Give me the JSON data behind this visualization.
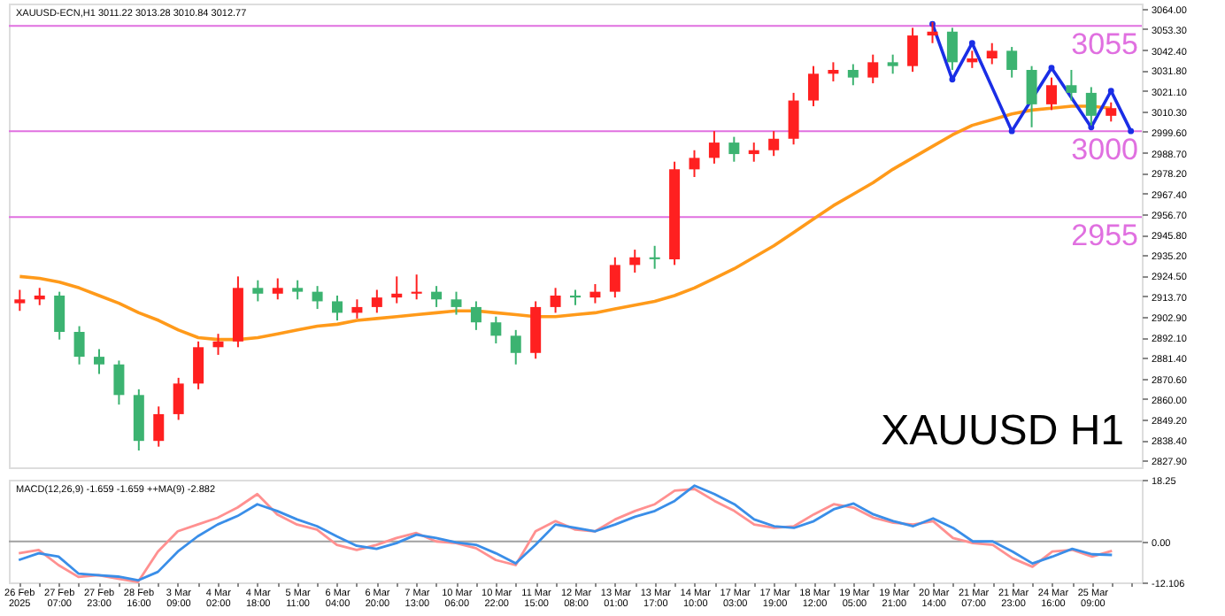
{
  "chart_data": [
    {
      "type": "candlestick",
      "title": "XAUUSD-ECN,H1  3011.22 3013.28 3010.84 3012.77",
      "ohlc": [
        [
          2910,
          2917,
          2906,
          2912
        ],
        [
          2912,
          2918,
          2909,
          2914
        ],
        [
          2914,
          2916,
          2891,
          2895
        ],
        [
          2895,
          2898,
          2878,
          2882
        ],
        [
          2882,
          2886,
          2873,
          2878
        ],
        [
          2878,
          2880,
          2857,
          2862
        ],
        [
          2862,
          2865,
          2833,
          2838
        ],
        [
          2838,
          2856,
          2835,
          2852
        ],
        [
          2852,
          2871,
          2849,
          2868
        ],
        [
          2868,
          2890,
          2865,
          2887
        ],
        [
          2887,
          2894,
          2883,
          2890
        ],
        [
          2890,
          2924,
          2887,
          2918
        ],
        [
          2918,
          2922,
          2911,
          2915
        ],
        [
          2915,
          2923,
          2912,
          2918
        ],
        [
          2918,
          2922,
          2912,
          2916
        ],
        [
          2916,
          2919,
          2907,
          2911
        ],
        [
          2911,
          2914,
          2901,
          2905
        ],
        [
          2905,
          2912,
          2902,
          2908
        ],
        [
          2908,
          2917,
          2905,
          2913
        ],
        [
          2913,
          2924,
          2910,
          2915
        ],
        [
          2915,
          2925,
          2912,
          2916
        ],
        [
          2916,
          2919,
          2908,
          2912
        ],
        [
          2912,
          2916,
          2904,
          2908
        ],
        [
          2908,
          2911,
          2896,
          2900
        ],
        [
          2900,
          2903,
          2889,
          2893
        ],
        [
          2893,
          2896,
          2878,
          2884
        ],
        [
          2884,
          2911,
          2881,
          2908
        ],
        [
          2908,
          2918,
          2905,
          2914
        ],
        [
          2914,
          2917,
          2909,
          2913
        ],
        [
          2913,
          2920,
          2910,
          2916
        ],
        [
          2916,
          2934,
          2913,
          2930
        ],
        [
          2930,
          2938,
          2926,
          2934
        ],
        [
          2934,
          2940,
          2928,
          2933
        ],
        [
          2933,
          2984,
          2930,
          2980
        ],
        [
          2980,
          2990,
          2976,
          2986
        ],
        [
          2986,
          3000,
          2983,
          2994
        ],
        [
          2994,
          2997,
          2984,
          2988
        ],
        [
          2988,
          2994,
          2984,
          2990
        ],
        [
          2990,
          3000,
          2987,
          2996
        ],
        [
          2996,
          3020,
          2993,
          3016
        ],
        [
          3016,
          3034,
          3013,
          3030
        ],
        [
          3030,
          3036,
          3026,
          3032
        ],
        [
          3032,
          3035,
          3024,
          3028
        ],
        [
          3028,
          3040,
          3025,
          3036
        ],
        [
          3036,
          3040,
          3030,
          3034
        ],
        [
          3034,
          3054,
          3031,
          3050
        ],
        [
          3050,
          3057,
          3046,
          3052
        ],
        [
          3052,
          3054,
          3032,
          3036
        ],
        [
          3036,
          3042,
          3033,
          3038
        ],
        [
          3038,
          3046,
          3035,
          3042
        ],
        [
          3042,
          3044,
          3028,
          3032
        ],
        [
          3032,
          3034,
          3002,
          3014
        ],
        [
          3014,
          3028,
          3011,
          3024
        ],
        [
          3024,
          3032,
          3016,
          3020
        ],
        [
          3020,
          3023,
          3003,
          3008
        ],
        [
          3008,
          3015,
          3005,
          3012
        ],
        null
      ],
      "colors": [
        "#ff2020",
        "#ff2020",
        "#3cb371",
        "#3cb371",
        "#3cb371",
        "#3cb371",
        "#3cb371",
        "#ff2020",
        "#ff2020",
        "#ff2020",
        "#ff2020",
        "#ff2020",
        "#3cb371",
        "#ff2020",
        "#3cb371",
        "#3cb371",
        "#3cb371",
        "#ff2020",
        "#ff2020",
        "#ff2020",
        "#ff2020",
        "#3cb371",
        "#3cb371",
        "#3cb371",
        "#3cb371",
        "#3cb371",
        "#ff2020",
        "#ff2020",
        "#3cb371",
        "#ff2020",
        "#ff2020",
        "#ff2020",
        "#3cb371",
        "#ff2020",
        "#ff2020",
        "#ff2020",
        "#3cb371",
        "#ff2020",
        "#ff2020",
        "#ff2020",
        "#ff2020",
        "#ff2020",
        "#3cb371",
        "#ff2020",
        "#3cb371",
        "#ff2020",
        "#ff2020",
        "#3cb371",
        "#ff2020",
        "#ff2020",
        "#3cb371",
        "#3cb371",
        "#ff2020",
        "#3cb371",
        "#3cb371",
        "#ff2020",
        null
      ],
      "series": [
        {
          "type": "line",
          "color": "#ff9a1a",
          "values": [
            2924,
            2923,
            2921,
            2918,
            2914,
            2910,
            2905,
            2901,
            2896,
            2892,
            2891,
            2891,
            2892,
            2894,
            2896,
            2898,
            2899,
            2901,
            2902,
            2903,
            2904,
            2905,
            2906,
            2906,
            2905,
            2904,
            2903,
            2903,
            2904,
            2905,
            2907,
            2909,
            2911,
            2914,
            2918,
            2923,
            2928,
            2934,
            2940,
            2947,
            2954,
            2961,
            2967,
            2973,
            2980,
            2986,
            2992,
            2998,
            3003,
            3006,
            3009,
            3011,
            3012,
            3013,
            3013,
            3012,
            null
          ]
        },
        {
          "type": "line",
          "color": "#1a2ee6",
          "marker": "circle",
          "values": [
            null,
            null,
            null,
            null,
            null,
            null,
            null,
            null,
            null,
            null,
            null,
            null,
            null,
            null,
            null,
            null,
            null,
            null,
            null,
            null,
            null,
            null,
            null,
            null,
            null,
            null,
            null,
            null,
            null,
            null,
            null,
            null,
            null,
            null,
            null,
            null,
            null,
            null,
            null,
            null,
            null,
            null,
            null,
            null,
            null,
            null,
            3056,
            3027,
            3046,
            null,
            3000,
            null,
            3033,
            null,
            3002,
            3021,
            3000
          ]
        }
      ],
      "ylim": [
        2824.2,
        3066.7
      ],
      "yticks": [
        {
          "value": 3064.0,
          "label": "3064.00"
        },
        {
          "value": 3053.3,
          "label": "3053.30"
        },
        {
          "value": 3042.4,
          "label": "3042.40"
        },
        {
          "value": 3031.8,
          "label": "3031.80"
        },
        {
          "value": 3021.1,
          "label": "3021.10"
        },
        {
          "value": 3010.3,
          "label": "3010.30"
        },
        {
          "value": 2999.6,
          "label": "2999.60"
        },
        {
          "value": 2988.7,
          "label": "2988.70"
        },
        {
          "value": 2978.2,
          "label": "2978.20"
        },
        {
          "value": 2967.4,
          "label": "2967.40"
        },
        {
          "value": 2956.7,
          "label": "2956.70"
        },
        {
          "value": 2945.8,
          "label": "2945.80"
        },
        {
          "value": 2935.2,
          "label": "2935.20"
        },
        {
          "value": 2924.5,
          "label": "2924.50"
        },
        {
          "value": 2913.7,
          "label": "2913.70"
        },
        {
          "value": 2902.9,
          "label": "2902.90"
        },
        {
          "value": 2892.1,
          "label": "2892.10"
        },
        {
          "value": 2881.4,
          "label": "2881.40"
        },
        {
          "value": 2870.6,
          "label": "2870.60"
        },
        {
          "value": 2860.0,
          "label": "2860.00"
        },
        {
          "value": 2849.2,
          "label": "2849.20"
        },
        {
          "value": 2838.4,
          "label": "2838.40"
        },
        {
          "value": 2827.9,
          "label": "2827.90"
        }
      ],
      "ref_lines": [
        {
          "axis": "y",
          "value": 3055,
          "label": "3055",
          "color": "#e070e0"
        },
        {
          "axis": "y",
          "value": 3000,
          "label": "3000",
          "color": "#e070e0"
        },
        {
          "axis": "y",
          "value": 2955,
          "label": "2955",
          "color": "#e070e0"
        }
      ],
      "annotations": [
        "XAUUSD H1"
      ],
      "tick_labels": "y",
      "grid": false
    },
    {
      "type": "line",
      "title": "MACD(12,26,9) -1.659 -1.659 ++MA(9) -2.882",
      "categories": [
        "26 Feb 2025",
        null,
        "27 Feb 07:00",
        null,
        "27 Feb 23:00",
        null,
        "28 Feb 16:00",
        null,
        "3 Mar 09:00",
        null,
        "4 Mar 02:00",
        null,
        "4 Mar 18:00",
        null,
        "5 Mar 11:00",
        null,
        "6 Mar 04:00",
        null,
        "6 Mar 20:00",
        null,
        "7 Mar 13:00",
        null,
        "10 Mar 06:00",
        null,
        "10 Mar 22:00",
        null,
        "11 Mar 15:00",
        null,
        "12 Mar 08:00",
        null,
        "13 Mar 01:00",
        null,
        "13 Mar 17:00",
        null,
        "14 Mar 10:00",
        null,
        "17 Mar 03:00",
        null,
        "17 Mar 19:00",
        null,
        "18 Mar 12:00",
        null,
        "19 Mar 05:00",
        null,
        "19 Mar 21:00",
        null,
        "20 Mar 14:00",
        null,
        "21 Mar 07:00",
        null,
        "21 Mar 23:00",
        null,
        "24 Mar 16:00",
        null,
        "25 Mar 09:00",
        null,
        null
      ],
      "series": [
        {
          "color": "#ff9090",
          "values": [
            -3.5,
            -2.5,
            -7,
            -10.5,
            -10,
            -11,
            -12,
            -3,
            3,
            5,
            7,
            10,
            14,
            8,
            5,
            3.5,
            -1,
            -2.5,
            -1,
            1,
            2.5,
            0,
            -0.5,
            -2,
            -5.5,
            -7,
            3,
            6,
            3.5,
            3,
            6.5,
            9,
            11,
            15,
            15.5,
            12,
            9,
            5,
            4,
            4.5,
            8,
            11,
            10,
            7,
            5.5,
            5,
            6,
            1,
            -0.5,
            -1,
            -5,
            -7.5,
            -3,
            -2.5,
            -4.5,
            -2.8,
            null
          ]
        },
        {
          "color": "#3a8ee8",
          "values": [
            -5.5,
            -3.5,
            -4.5,
            -9.5,
            -10,
            -10.4,
            -11.5,
            -9,
            -3,
            1.5,
            5,
            7.5,
            11,
            9,
            6.5,
            4.5,
            1.5,
            -1.3,
            -2.2,
            -0.5,
            2,
            1,
            -0.3,
            -1,
            -3.5,
            -6.5,
            -1,
            5,
            4,
            3,
            5,
            7.3,
            9,
            12,
            16.5,
            14,
            11,
            6.5,
            4.5,
            4,
            6,
            9.5,
            11.2,
            8,
            6,
            4.5,
            6.8,
            4,
            0,
            0,
            -3,
            -6.5,
            -4.5,
            -2.2,
            -3.8,
            -4,
            null
          ]
        }
      ],
      "ylim": [
        -12.106,
        18.25
      ],
      "yticks": [
        {
          "value": 18.25,
          "label": "18.25"
        },
        {
          "value": 0,
          "label": "0.00"
        },
        -12.106
      ],
      "ref_lines": [
        {
          "axis": "y",
          "value": 0,
          "color": "#a0a0a0"
        }
      ],
      "grid": false
    }
  ]
}
